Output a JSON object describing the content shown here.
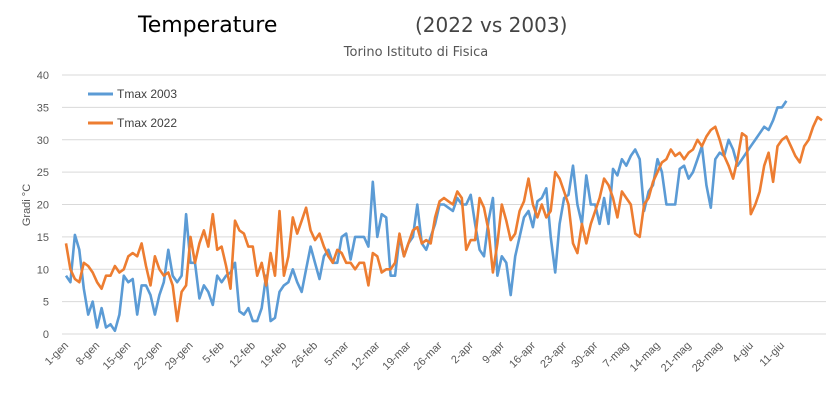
{
  "chart_data": {
    "type": "line",
    "title": "Temperature",
    "title_suffix": "(2022 vs 2003)",
    "subtitle": "Torino Istituto di Fisica",
    "ylabel": "Gradi °C",
    "xlabel": "",
    "ylim": [
      0,
      40
    ],
    "yticks": [
      0,
      5,
      10,
      15,
      20,
      25,
      30,
      35,
      40
    ],
    "grid": true,
    "legend_position": "top-left",
    "x_tick_labels": [
      "1-gen",
      "8-gen",
      "15-gen",
      "22-gen",
      "29-gen",
      "5-feb",
      "12-feb",
      "19-feb",
      "26-feb",
      "5-mar",
      "12-mar",
      "19-mar",
      "26-mar",
      "2-apr",
      "9-apr",
      "16-apr",
      "23-apr",
      "30-apr",
      "7-mag",
      "14-mag",
      "21-mag",
      "28-mag",
      "4-giu",
      "11-giu"
    ],
    "x_start_label": "1-gen",
    "x_step_days": 1,
    "series": [
      {
        "name": "Tmax 2003",
        "color": "#5b9bd5",
        "values": [
          9,
          8,
          15.3,
          13,
          7,
          3,
          5,
          1,
          4,
          1,
          1.5,
          0.5,
          3,
          9,
          8,
          8.5,
          3,
          7.5,
          7.5,
          6,
          3,
          6,
          8,
          13,
          9,
          8,
          9,
          18.5,
          11,
          11,
          5.5,
          7.5,
          6.5,
          4.5,
          9,
          8,
          9,
          9.5,
          11,
          3.5,
          3,
          4,
          2,
          2,
          4,
          9,
          2,
          2.5,
          6.5,
          7.5,
          8,
          10,
          8,
          6.5,
          10,
          13.5,
          11,
          8.5,
          12,
          13,
          11,
          11,
          15,
          15.5,
          11.5,
          15,
          15,
          15,
          13.5,
          23.5,
          15,
          18.5,
          18,
          9,
          9,
          15,
          12,
          14,
          15,
          20,
          14,
          13,
          15,
          17,
          20,
          20,
          19.5,
          19,
          21,
          20,
          20,
          21.5,
          17,
          13,
          12,
          17.5,
          21,
          9,
          12,
          11,
          6,
          12,
          15,
          18,
          19,
          16.5,
          20.5,
          21,
          22.5,
          15,
          9.5,
          17,
          21,
          21.5,
          26,
          20,
          17,
          24.5,
          20,
          20,
          17,
          21,
          17,
          25.5,
          24.5,
          27,
          26,
          27.5,
          28.5,
          27,
          19,
          22,
          23,
          27,
          25,
          20,
          20,
          20,
          25.5,
          26,
          24,
          25,
          27,
          29,
          23,
          19.5,
          27,
          28,
          27.5,
          30,
          28.5,
          26,
          27,
          28,
          29,
          30,
          31,
          32,
          31.5,
          33,
          35,
          35,
          36
        ]
      },
      {
        "name": "Tmax 2022",
        "color": "#ed7d31",
        "values": [
          14,
          10,
          8.5,
          8,
          11,
          10.5,
          9.5,
          8,
          7,
          9,
          9,
          10.5,
          9.5,
          10,
          12,
          12.5,
          12,
          14,
          10.5,
          7.5,
          12,
          10,
          9,
          9.5,
          7.5,
          2,
          6.5,
          7.5,
          15,
          11,
          14,
          16,
          13.5,
          18.5,
          13,
          13.5,
          10.5,
          7,
          17.5,
          16,
          15.5,
          13.5,
          13.5,
          9,
          11,
          7.5,
          12.5,
          9,
          19,
          9,
          12,
          18,
          15.5,
          17.5,
          19.5,
          16,
          14.5,
          15.5,
          13.5,
          12,
          11,
          13,
          12.5,
          11,
          11,
          10,
          11,
          11,
          7.5,
          12.5,
          12,
          9.5,
          10,
          10,
          11,
          15.5,
          12,
          14,
          16,
          16.5,
          14,
          14.5,
          14,
          18,
          20.5,
          21,
          20.5,
          20,
          22,
          21,
          13,
          14.5,
          14.5,
          21,
          19.5,
          16,
          9.5,
          14,
          20,
          17.5,
          14.5,
          15.5,
          19,
          20.5,
          24,
          20,
          18,
          20,
          18,
          19,
          25,
          24,
          22,
          20,
          14,
          12.5,
          17,
          14,
          17,
          19,
          21,
          24,
          23,
          21,
          18,
          22,
          21,
          20,
          15.5,
          15,
          20,
          21,
          23.5,
          25,
          26.5,
          27,
          28.5,
          27.5,
          28,
          27,
          28,
          28.5,
          30,
          29,
          30.5,
          31.5,
          32,
          30,
          27.5,
          26,
          24,
          27,
          31,
          30.5,
          18.5,
          20,
          22,
          26,
          28,
          23.5,
          29,
          30,
          30.5,
          29,
          27.5,
          26.5,
          29,
          30,
          32,
          33.5,
          33
        ]
      }
    ]
  }
}
